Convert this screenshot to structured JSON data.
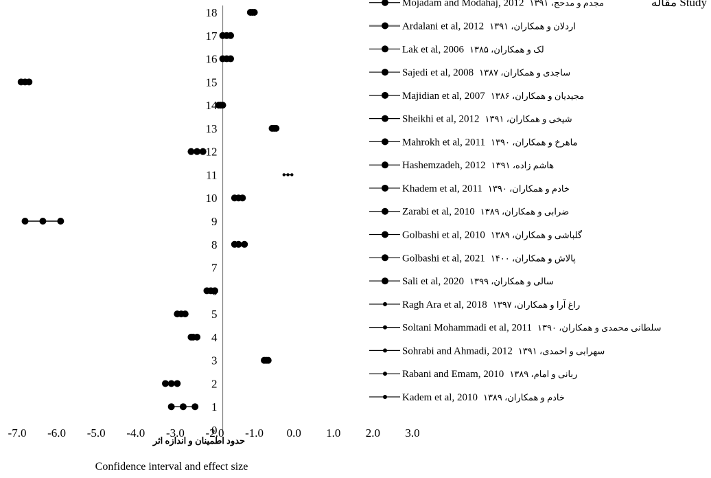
{
  "chart_data": {
    "type": "scatter",
    "title": "",
    "legend_title": "مقاله Study",
    "xlabel_fa": "حدود اطمینان و اندازه اثر",
    "xlabel_en": "Confidence interval  and effect size",
    "xlim": [
      -7,
      3
    ],
    "ylim": [
      0,
      18
    ],
    "x_ticks": [
      "-7.0",
      "-6.0",
      "-5.0",
      "-4.0",
      "-3.0",
      "-2.0",
      "-1.0",
      "0.0",
      "1.0",
      "2.0",
      "3.0"
    ],
    "y_ticks": [
      "0",
      "1",
      "2",
      "3",
      "4",
      "5",
      "6",
      "7",
      "8",
      "9",
      "10",
      "11",
      "12",
      "13",
      "14",
      "15",
      "16",
      "17",
      "18"
    ],
    "reference_line_x": -1.8,
    "rows": [
      {
        "y": 18,
        "label": "18",
        "study_en": "Mojadam and Modahaj, 2012",
        "study_fa": "مجدم و مدحج، ۱۳۹۱",
        "lower": -1.1,
        "effect": -1.05,
        "upper": -1.0,
        "marker": "large"
      },
      {
        "y": 17,
        "label": "17",
        "study_en": "Ardalani et al, 2012",
        "study_fa": "اردلان و همکاران، ۱۳۹۱",
        "lower": -1.8,
        "effect": -1.7,
        "upper": -1.6,
        "marker": "large"
      },
      {
        "y": 16,
        "label": "16",
        "study_en": "Lak et al, 2006",
        "study_fa": "لک و همکاران، ۱۳۸۵",
        "lower": -1.8,
        "effect": -1.7,
        "upper": -1.6,
        "marker": "large"
      },
      {
        "y": 15,
        "label": "15",
        "study_en": "Sajedi et al, 2008",
        "study_fa": "ساجدی و همکاران، ۱۳۸۷",
        "lower": -6.9,
        "effect": -6.8,
        "upper": -6.7,
        "marker": "large"
      },
      {
        "y": 14,
        "label": "14",
        "study_en": "Majidian et al, 2007",
        "study_fa": "مجیدیان و همکاران، ۱۳۸۶",
        "lower": -1.9,
        "effect": -1.85,
        "upper": -1.8,
        "marker": "large"
      },
      {
        "y": 13,
        "label": "13",
        "study_en": "Sheikhi et al, 2012",
        "study_fa": "شیخی و همکاران، ۱۳۹۱",
        "lower": -0.55,
        "effect": -0.5,
        "upper": -0.45,
        "marker": "large"
      },
      {
        "y": 12,
        "label": "12",
        "study_en": "Mahrokh et al, 2011",
        "study_fa": "ماهرخ و همکاران، ۱۳۹۰",
        "lower": -2.6,
        "effect": -2.45,
        "upper": -2.3,
        "marker": "large"
      },
      {
        "y": 11,
        "label": "11",
        "study_en": "Hashemzadeh, 2012",
        "study_fa": "هاشم زاده، ۱۳۹۱",
        "lower": -0.25,
        "effect": -0.15,
        "upper": -0.05,
        "marker": "small"
      },
      {
        "y": 10,
        "label": "10",
        "study_en": "Khadem et al, 2011",
        "study_fa": "خادم و همکاران، ۱۳۹۰",
        "lower": -1.5,
        "effect": -1.4,
        "upper": -1.3,
        "marker": "large"
      },
      {
        "y": 9,
        "label": "9",
        "study_en": "Zarabi et al, 2010",
        "study_fa": "ضرابی و همکاران، ۱۳۸۹",
        "lower": -6.8,
        "effect": -6.35,
        "upper": -5.9,
        "marker": "large"
      },
      {
        "y": 8,
        "label": "8",
        "study_en": "Golbashi et al, 2010",
        "study_fa": "گلباشی و همکاران، ۱۳۸۹",
        "lower": -1.5,
        "effect": -1.4,
        "upper": -1.25,
        "marker": "large"
      },
      {
        "y": 7,
        "label": "7",
        "study_en": "Golbashi et al, 2021",
        "study_fa": "پالاش و همکاران، ۱۴۰۰",
        "lower": null,
        "effect": null,
        "upper": null,
        "marker": "none"
      },
      {
        "y": 6,
        "label": "6",
        "study_en": "Sali et al, 2020",
        "study_fa": "سالی و همکاران، ۱۳۹۹",
        "lower": -2.2,
        "effect": -2.1,
        "upper": -2.0,
        "marker": "large"
      },
      {
        "y": 5,
        "label": "5",
        "study_en": "Ragh Ara et al, 2018",
        "study_fa": "راغ آرا و همکاران، ۱۳۹۷",
        "lower": -2.95,
        "effect": -2.85,
        "upper": -2.75,
        "marker": "large"
      },
      {
        "y": 4,
        "label": "4",
        "study_en": "Soltani Mohammadi  et al, 2011",
        "study_fa": "سلطانی محمدی و همکاران، ۱۳۹۰",
        "lower": -2.6,
        "effect": -2.55,
        "upper": -2.45,
        "marker": "large"
      },
      {
        "y": 3,
        "label": "3",
        "study_en": "Sohrabi and Ahmadi, 2012",
        "study_fa": "سهرابی و احمدی، ۱۳۹۱",
        "lower": -0.75,
        "effect": -0.7,
        "upper": -0.65,
        "marker": "large"
      },
      {
        "y": 2,
        "label": "2",
        "study_en": "Rabani and Emam, 2010",
        "study_fa": "ربانی و امام، ۱۳۸۹",
        "lower": -3.25,
        "effect": -3.1,
        "upper": -2.95,
        "marker": "large"
      },
      {
        "y": 1,
        "label": "1",
        "study_en": "Kadem et al, 2010",
        "study_fa": "خادم و همکاران، ۱۳۸۹",
        "lower": -3.1,
        "effect": -2.8,
        "upper": -2.5,
        "marker": "large"
      },
      {
        "y": 0,
        "label": "0",
        "study_en": "",
        "study_fa": "",
        "lower": null,
        "effect": null,
        "upper": null,
        "marker": "none"
      }
    ]
  }
}
